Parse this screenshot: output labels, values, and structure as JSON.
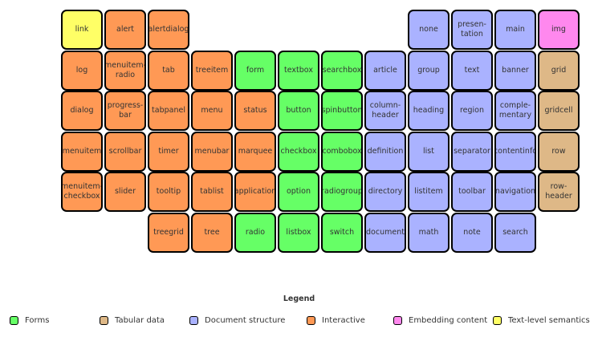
{
  "colors": {
    "text-level": "#ffff66",
    "interactive": "#ff9955",
    "forms": "#66ff66",
    "document": "#aab2ff",
    "embedding": "#ff88ee",
    "tabular": "#deb887"
  },
  "rows": [
    [
      [
        "link",
        "text-level"
      ],
      [
        "alert",
        "interactive"
      ],
      [
        "alertdialog",
        "interactive"
      ],
      null,
      null,
      null,
      null,
      null,
      null,
      [
        "none",
        "document"
      ],
      [
        "presen-\ntation",
        "document"
      ],
      [
        "main",
        "document"
      ],
      [
        "img",
        "embedding"
      ]
    ],
    [
      [
        "log",
        "interactive"
      ],
      [
        "menuitem-\nradio",
        "interactive"
      ],
      [
        "tab",
        "interactive"
      ],
      [
        "treeitem",
        "interactive"
      ],
      [
        "form",
        "forms"
      ],
      [
        "textbox",
        "forms"
      ],
      [
        "searchbox",
        "forms"
      ],
      [
        "article",
        "document"
      ],
      [
        "group",
        "document"
      ],
      [
        "text",
        "document"
      ],
      [
        "banner",
        "document"
      ],
      [
        "grid",
        "tabular"
      ]
    ],
    [
      [
        "dialog",
        "interactive"
      ],
      [
        "progress-\nbar",
        "interactive"
      ],
      [
        "tabpanel",
        "interactive"
      ],
      [
        "menu",
        "interactive"
      ],
      [
        "status",
        "interactive"
      ],
      [
        "button",
        "forms"
      ],
      [
        "spinbutton",
        "forms"
      ],
      [
        "column-\nheader",
        "document"
      ],
      [
        "heading",
        "document"
      ],
      [
        "region",
        "document"
      ],
      [
        "comple-\nmentary",
        "document"
      ],
      [
        "gridcell",
        "tabular"
      ]
    ],
    [
      [
        "menuitem",
        "interactive"
      ],
      [
        "scrollbar",
        "interactive"
      ],
      [
        "timer",
        "interactive"
      ],
      [
        "menubar",
        "interactive"
      ],
      [
        "marquee",
        "interactive"
      ],
      [
        "checkbox",
        "forms"
      ],
      [
        "combobox",
        "forms"
      ],
      [
        "definition",
        "document"
      ],
      [
        "list",
        "document"
      ],
      [
        "separator",
        "document"
      ],
      [
        "contentinfo",
        "document"
      ],
      [
        "row",
        "tabular"
      ]
    ],
    [
      [
        "menuitem-\ncheckbox",
        "interactive"
      ],
      [
        "slider",
        "interactive"
      ],
      [
        "tooltip",
        "interactive"
      ],
      [
        "tablist",
        "interactive"
      ],
      [
        "application",
        "interactive"
      ],
      [
        "option",
        "forms"
      ],
      [
        "radiogroup",
        "forms"
      ],
      [
        "directory",
        "document"
      ],
      [
        "listitem",
        "document"
      ],
      [
        "toolbar",
        "document"
      ],
      [
        "navigation",
        "document"
      ],
      [
        "row-header",
        "tabular"
      ]
    ],
    [
      null,
      null,
      [
        "treegrid",
        "interactive"
      ],
      [
        "tree",
        "interactive"
      ],
      [
        "radio",
        "forms"
      ],
      [
        "listbox",
        "forms"
      ],
      [
        "switch",
        "forms"
      ],
      [
        "document",
        "document"
      ],
      [
        "math",
        "document"
      ],
      [
        "note",
        "document"
      ],
      [
        "search",
        "document"
      ],
      null
    ]
  ],
  "legend": {
    "title": "Legend",
    "items": [
      {
        "label": "Forms",
        "category": "forms"
      },
      {
        "label": "Tabular data",
        "category": "tabular"
      },
      {
        "label": "Document structure",
        "category": "document"
      },
      {
        "label": "Interactive",
        "category": "interactive"
      },
      {
        "label": "Embedding content",
        "category": "embedding"
      },
      {
        "label": "Text-level semantics",
        "category": "text-level"
      }
    ]
  }
}
